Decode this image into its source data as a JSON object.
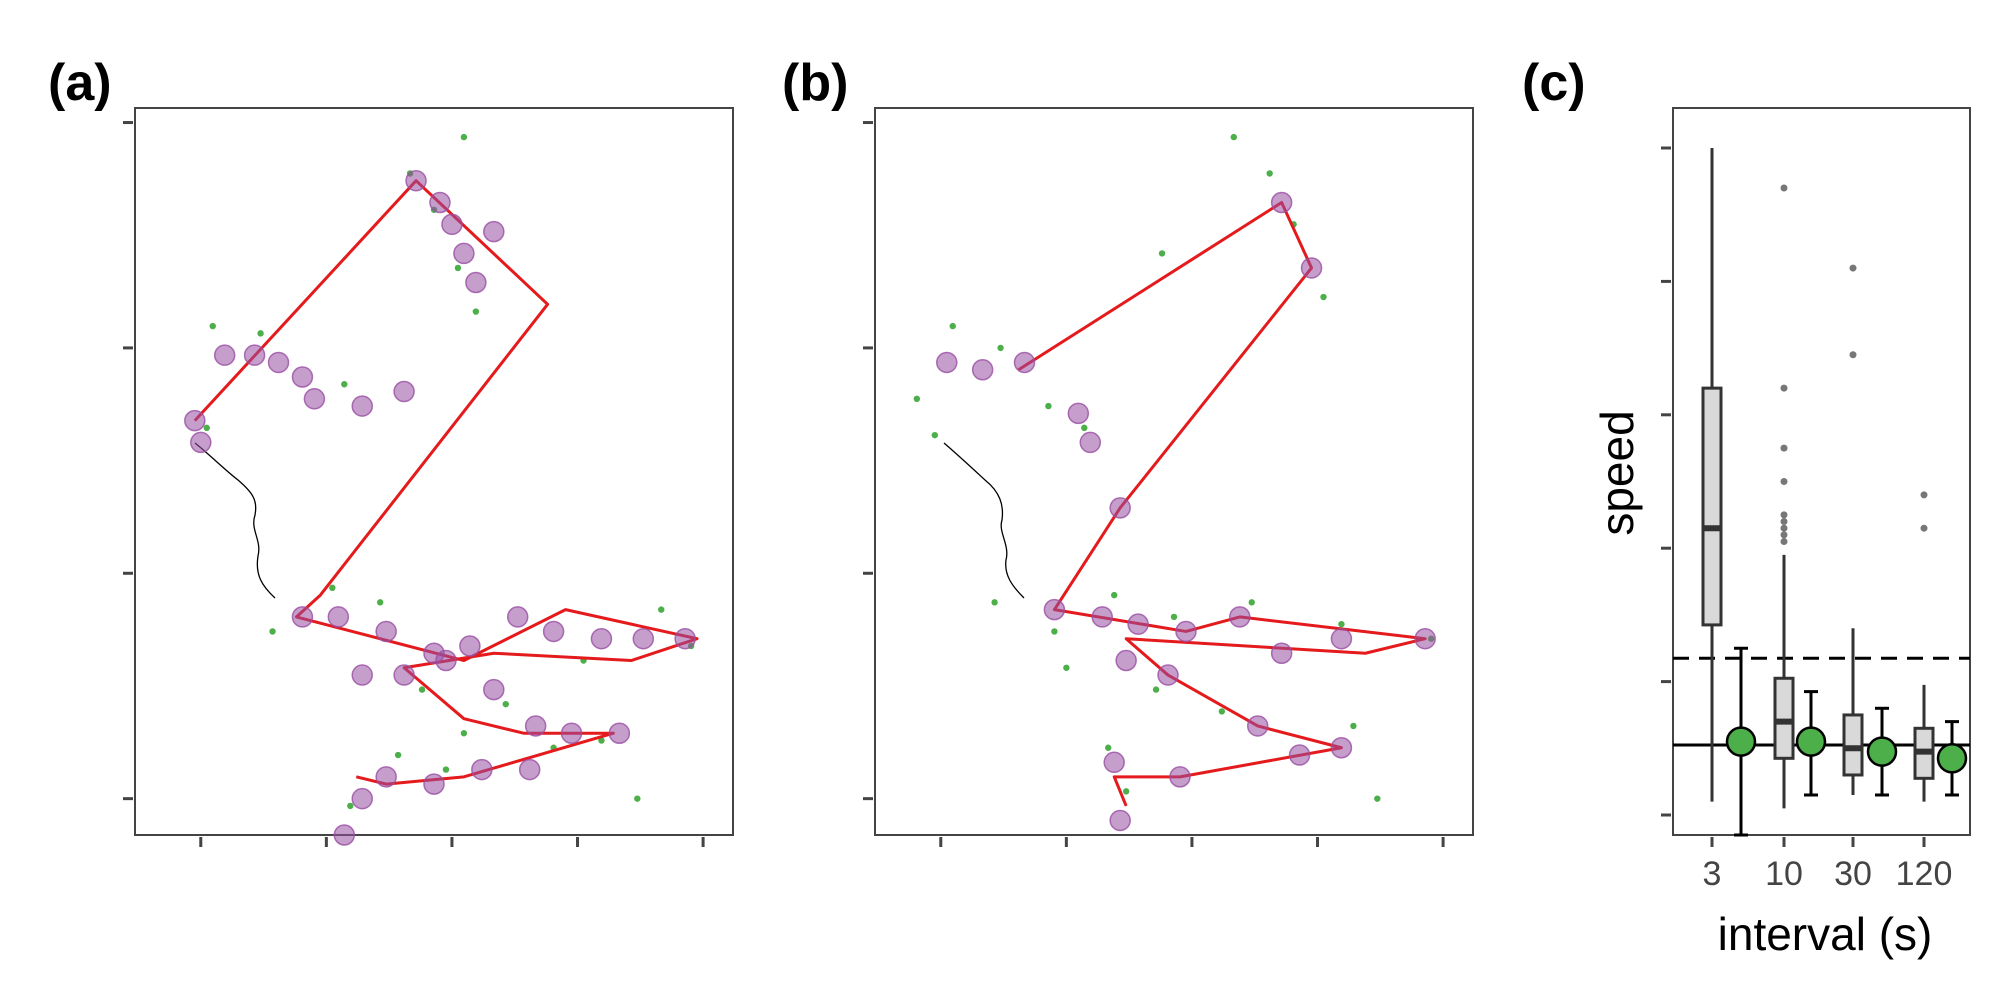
{
  "chart_data": [
    {
      "type": "scatter",
      "panel_label": "(a)",
      "colors": {
        "gps_points": "#4daf4a",
        "selected_points": "#984ea3",
        "track": "#e41a1c",
        "coastline": "#000000"
      },
      "grid": false,
      "track": [
        [
          0.1,
          0.43
        ],
        [
          0.47,
          0.1
        ],
        [
          0.69,
          0.27
        ],
        [
          0.31,
          0.67
        ],
        [
          0.27,
          0.7
        ],
        [
          0.55,
          0.76
        ],
        [
          0.72,
          0.69
        ],
        [
          0.94,
          0.73
        ],
        [
          0.83,
          0.76
        ],
        [
          0.6,
          0.75
        ],
        [
          0.45,
          0.77
        ],
        [
          0.55,
          0.84
        ],
        [
          0.65,
          0.86
        ],
        [
          0.8,
          0.86
        ],
        [
          0.55,
          0.92
        ],
        [
          0.42,
          0.93
        ],
        [
          0.37,
          0.92
        ]
      ],
      "selected_points": [
        [
          0.47,
          0.1
        ],
        [
          0.51,
          0.13
        ],
        [
          0.53,
          0.16
        ],
        [
          0.55,
          0.2
        ],
        [
          0.57,
          0.24
        ],
        [
          0.6,
          0.17
        ],
        [
          0.15,
          0.34
        ],
        [
          0.2,
          0.34
        ],
        [
          0.24,
          0.35
        ],
        [
          0.28,
          0.37
        ],
        [
          0.3,
          0.4
        ],
        [
          0.1,
          0.43
        ],
        [
          0.11,
          0.46
        ],
        [
          0.38,
          0.41
        ],
        [
          0.45,
          0.39
        ],
        [
          0.28,
          0.7
        ],
        [
          0.34,
          0.7
        ],
        [
          0.42,
          0.72
        ],
        [
          0.5,
          0.75
        ],
        [
          0.56,
          0.74
        ],
        [
          0.64,
          0.7
        ],
        [
          0.7,
          0.72
        ],
        [
          0.78,
          0.73
        ],
        [
          0.85,
          0.73
        ],
        [
          0.92,
          0.73
        ],
        [
          0.38,
          0.78
        ],
        [
          0.45,
          0.78
        ],
        [
          0.52,
          0.76
        ],
        [
          0.6,
          0.8
        ],
        [
          0.67,
          0.85
        ],
        [
          0.73,
          0.86
        ],
        [
          0.81,
          0.86
        ],
        [
          0.42,
          0.92
        ],
        [
          0.5,
          0.93
        ],
        [
          0.58,
          0.91
        ],
        [
          0.66,
          0.91
        ],
        [
          0.38,
          0.95
        ],
        [
          0.35,
          1.0
        ]
      ],
      "gps_points": [
        [
          0.55,
          0.04
        ],
        [
          0.46,
          0.09
        ],
        [
          0.5,
          0.14
        ],
        [
          0.54,
          0.22
        ],
        [
          0.57,
          0.28
        ],
        [
          0.13,
          0.3
        ],
        [
          0.21,
          0.31
        ],
        [
          0.35,
          0.38
        ],
        [
          0.12,
          0.44
        ],
        [
          0.23,
          0.72
        ],
        [
          0.33,
          0.66
        ],
        [
          0.41,
          0.68
        ],
        [
          0.48,
          0.8
        ],
        [
          0.55,
          0.86
        ],
        [
          0.62,
          0.82
        ],
        [
          0.75,
          0.76
        ],
        [
          0.88,
          0.69
        ],
        [
          0.93,
          0.74
        ],
        [
          0.44,
          0.89
        ],
        [
          0.52,
          0.91
        ],
        [
          0.7,
          0.88
        ],
        [
          0.78,
          0.87
        ],
        [
          0.84,
          0.95
        ],
        [
          0.36,
          0.96
        ]
      ]
    },
    {
      "type": "scatter",
      "panel_label": "(b)",
      "colors": {
        "gps_points": "#4daf4a",
        "selected_points": "#984ea3",
        "track": "#e41a1c",
        "coastline": "#000000"
      },
      "grid": false,
      "track": [
        [
          0.24,
          0.36
        ],
        [
          0.68,
          0.13
        ],
        [
          0.73,
          0.22
        ],
        [
          0.41,
          0.55
        ],
        [
          0.3,
          0.69
        ],
        [
          0.52,
          0.72
        ],
        [
          0.61,
          0.7
        ],
        [
          0.92,
          0.73
        ],
        [
          0.82,
          0.75
        ],
        [
          0.42,
          0.73
        ],
        [
          0.49,
          0.78
        ],
        [
          0.64,
          0.85
        ],
        [
          0.78,
          0.88
        ],
        [
          0.51,
          0.92
        ],
        [
          0.4,
          0.92
        ],
        [
          0.42,
          0.96
        ]
      ],
      "selected_points": [
        [
          0.68,
          0.13
        ],
        [
          0.73,
          0.22
        ],
        [
          0.12,
          0.35
        ],
        [
          0.18,
          0.36
        ],
        [
          0.25,
          0.35
        ],
        [
          0.34,
          0.42
        ],
        [
          0.36,
          0.46
        ],
        [
          0.41,
          0.55
        ],
        [
          0.3,
          0.69
        ],
        [
          0.38,
          0.7
        ],
        [
          0.44,
          0.71
        ],
        [
          0.52,
          0.72
        ],
        [
          0.61,
          0.7
        ],
        [
          0.78,
          0.73
        ],
        [
          0.92,
          0.73
        ],
        [
          0.68,
          0.75
        ],
        [
          0.42,
          0.76
        ],
        [
          0.49,
          0.78
        ],
        [
          0.64,
          0.85
        ],
        [
          0.78,
          0.88
        ],
        [
          0.71,
          0.89
        ],
        [
          0.51,
          0.92
        ],
        [
          0.4,
          0.9
        ],
        [
          0.41,
          0.98
        ]
      ],
      "gps_points": [
        [
          0.6,
          0.04
        ],
        [
          0.66,
          0.09
        ],
        [
          0.7,
          0.16
        ],
        [
          0.75,
          0.26
        ],
        [
          0.48,
          0.2
        ],
        [
          0.13,
          0.3
        ],
        [
          0.07,
          0.4
        ],
        [
          0.1,
          0.45
        ],
        [
          0.21,
          0.33
        ],
        [
          0.29,
          0.41
        ],
        [
          0.35,
          0.44
        ],
        [
          0.2,
          0.68
        ],
        [
          0.3,
          0.72
        ],
        [
          0.4,
          0.67
        ],
        [
          0.5,
          0.7
        ],
        [
          0.63,
          0.68
        ],
        [
          0.78,
          0.71
        ],
        [
          0.93,
          0.73
        ],
        [
          0.32,
          0.77
        ],
        [
          0.47,
          0.8
        ],
        [
          0.58,
          0.83
        ],
        [
          0.8,
          0.85
        ],
        [
          0.39,
          0.88
        ],
        [
          0.42,
          0.94
        ],
        [
          0.84,
          0.95
        ]
      ]
    },
    {
      "type": "box",
      "panel_label": "(c)",
      "xlabel": "interval (s)",
      "ylabel": "speed",
      "categories": [
        "3",
        "10",
        "30",
        "120"
      ],
      "ylim": [
        0,
        10.3
      ],
      "y_ticks": [
        0,
        2,
        4,
        6,
        8,
        10
      ],
      "grid": false,
      "reference_lines": [
        {
          "style": "dashed",
          "value": 2.35
        },
        {
          "style": "solid",
          "value": 1.05
        }
      ],
      "boxes": [
        {
          "category": "3",
          "min": 0.2,
          "q1": 2.85,
          "median": 4.3,
          "q3": 6.4,
          "max": 10.0,
          "outliers": []
        },
        {
          "category": "10",
          "min": 0.1,
          "q1": 0.85,
          "median": 1.4,
          "q3": 2.05,
          "max": 3.9,
          "outliers": [
            4.1,
            4.2,
            4.3,
            4.4,
            4.5,
            5.0,
            5.5,
            6.4,
            9.4
          ]
        },
        {
          "category": "30",
          "min": 0.3,
          "q1": 0.6,
          "median": 1.0,
          "q3": 1.5,
          "max": 2.8,
          "outliers": [
            6.9,
            8.2
          ]
        },
        {
          "category": "120",
          "min": 0.2,
          "q1": 0.55,
          "median": 0.95,
          "q3": 1.3,
          "max": 1.95,
          "outliers": [
            4.3,
            4.8
          ]
        }
      ],
      "point_estimates": [
        {
          "category": "3",
          "value": 1.1,
          "lower": -0.3,
          "upper": 2.5
        },
        {
          "category": "10",
          "value": 1.1,
          "lower": 0.3,
          "upper": 1.85
        },
        {
          "category": "30",
          "value": 0.95,
          "lower": 0.3,
          "upper": 1.6
        },
        {
          "category": "120",
          "value": 0.85,
          "lower": 0.3,
          "upper": 1.4
        }
      ],
      "colors": {
        "box_fill": "#d9d9d9",
        "box_stroke": "#333333",
        "estimate": "#4daf4a",
        "outlier": "#777777"
      }
    }
  ]
}
